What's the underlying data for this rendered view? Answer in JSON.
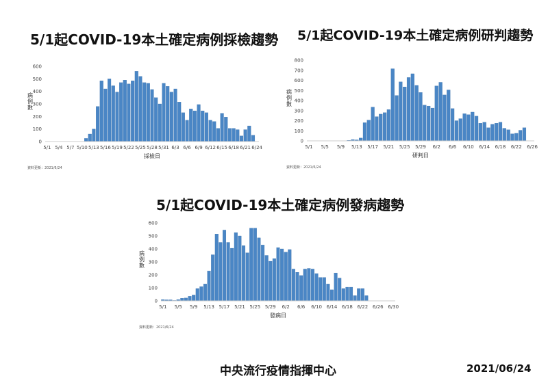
{
  "titles": {
    "chart1": "5/1起COVID-19本土確定病例採檢趨勢",
    "chart2": "5/1起COVID-19本土確定病例研判趨勢",
    "chart3": "5/1起COVID-19本土確定病例發病趨勢"
  },
  "footer": {
    "organization": "中央流行疫情指揮中心",
    "date": "2021/06/24"
  },
  "colors": {
    "bar": "#4a86c5",
    "bar_edge": "#3a70aa",
    "axis": "#cccccc"
  },
  "chart_data": [
    {
      "type": "bar",
      "title": "5/1起COVID-19本土確定病例採檢趨勢",
      "xlabel": "採檢日",
      "ylabel": "病例數",
      "ylim": [
        0,
        600
      ],
      "yticks": [
        0,
        100,
        200,
        300,
        400,
        500,
        600
      ],
      "xtick_labels": [
        "5/1",
        "5/4",
        "5/7",
        "5/10",
        "5/13",
        "5/16",
        "5/19",
        "5/22",
        "5/25",
        "5/28",
        "5/31",
        "6/3",
        "6/6",
        "6/9",
        "6/12",
        "6/15",
        "6/18",
        "6/21",
        "6/24"
      ],
      "source_note": "資料更新：2021/6/24",
      "categories": [
        "5/1",
        "5/2",
        "5/3",
        "5/4",
        "5/5",
        "5/6",
        "5/7",
        "5/8",
        "5/9",
        "5/10",
        "5/11",
        "5/12",
        "5/13",
        "5/14",
        "5/15",
        "5/16",
        "5/17",
        "5/18",
        "5/19",
        "5/20",
        "5/21",
        "5/22",
        "5/23",
        "5/24",
        "5/25",
        "5/26",
        "5/27",
        "5/28",
        "5/29",
        "5/30",
        "5/31",
        "6/1",
        "6/2",
        "6/3",
        "6/4",
        "6/5",
        "6/6",
        "6/7",
        "6/8",
        "6/9",
        "6/10",
        "6/11",
        "6/12",
        "6/13",
        "6/14",
        "6/15",
        "6/16",
        "6/17",
        "6/18",
        "6/19",
        "6/20",
        "6/21",
        "6/22",
        "6/23"
      ],
      "values": [
        0,
        0,
        0,
        0,
        0,
        0,
        0,
        0,
        0,
        0,
        25,
        60,
        100,
        280,
        485,
        420,
        500,
        445,
        395,
        470,
        490,
        460,
        485,
        560,
        520,
        470,
        465,
        415,
        350,
        300,
        465,
        440,
        395,
        420,
        315,
        230,
        170,
        260,
        245,
        295,
        245,
        230,
        170,
        160,
        105,
        225,
        195,
        105,
        105,
        95,
        45,
        95,
        125,
        50
      ]
    },
    {
      "type": "bar",
      "title": "5/1起COVID-19本土確定病例研判趨勢",
      "xlabel": "研判日",
      "ylabel": "病例數",
      "ylim": [
        0,
        800
      ],
      "yticks": [
        0,
        100,
        200,
        300,
        400,
        500,
        600,
        700,
        800
      ],
      "xtick_labels": [
        "5/1",
        "5/5",
        "5/9",
        "5/13",
        "5/17",
        "5/21",
        "5/25",
        "5/29",
        "6/2",
        "6/6",
        "6/10",
        "6/14",
        "6/18",
        "6/22",
        "6/26"
      ],
      "source_note": "資料更新：2021/6/24",
      "categories": [
        "5/1",
        "5/2",
        "5/3",
        "5/4",
        "5/5",
        "5/6",
        "5/7",
        "5/8",
        "5/9",
        "5/10",
        "5/11",
        "5/12",
        "5/13",
        "5/14",
        "5/15",
        "5/16",
        "5/17",
        "5/18",
        "5/19",
        "5/20",
        "5/21",
        "5/22",
        "5/23",
        "5/24",
        "5/25",
        "5/26",
        "5/27",
        "5/28",
        "5/29",
        "5/30",
        "5/31",
        "6/1",
        "6/2",
        "6/3",
        "6/4",
        "6/5",
        "6/6",
        "6/7",
        "6/8",
        "6/9",
        "6/10",
        "6/11",
        "6/12",
        "6/13",
        "6/14",
        "6/15",
        "6/16",
        "6/17",
        "6/18",
        "6/19",
        "6/20",
        "6/21",
        "6/22",
        "6/23",
        "6/24"
      ],
      "values": [
        1,
        1,
        0,
        0,
        1,
        0,
        0,
        1,
        0,
        2,
        5,
        13,
        10,
        28,
        180,
        206,
        335,
        240,
        265,
        280,
        310,
        715,
        450,
        585,
        535,
        628,
        665,
        550,
        480,
        355,
        345,
        325,
        545,
        580,
        455,
        505,
        320,
        200,
        220,
        270,
        260,
        285,
        245,
        175,
        185,
        130,
        165,
        175,
        185,
        125,
        110,
        70,
        75,
        105,
        130
      ]
    },
    {
      "type": "bar",
      "title": "5/1起COVID-19本土確定病例發病趨勢",
      "xlabel": "發病日",
      "ylabel": "病例數",
      "ylim": [
        0,
        600
      ],
      "yticks": [
        0,
        100,
        200,
        300,
        400,
        500,
        600
      ],
      "xtick_labels": [
        "5/1",
        "5/5",
        "5/9",
        "5/13",
        "5/17",
        "5/21",
        "5/25",
        "5/29",
        "6/2",
        "6/6",
        "6/10",
        "6/14",
        "6/18",
        "6/22",
        "6/26",
        "6/30"
      ],
      "source_note": "資料更新：2021/6/24",
      "categories": [
        "5/1",
        "5/2",
        "5/3",
        "5/4",
        "5/5",
        "5/6",
        "5/7",
        "5/8",
        "5/9",
        "5/10",
        "5/11",
        "5/12",
        "5/13",
        "5/14",
        "5/15",
        "5/16",
        "5/17",
        "5/18",
        "5/19",
        "5/20",
        "5/21",
        "5/22",
        "5/23",
        "5/24",
        "5/25",
        "5/26",
        "5/27",
        "5/28",
        "5/29",
        "5/30",
        "5/31",
        "6/1",
        "6/2",
        "6/3",
        "6/4",
        "6/5",
        "6/6",
        "6/7",
        "6/8",
        "6/9",
        "6/10",
        "6/11",
        "6/12",
        "6/13",
        "6/14",
        "6/15",
        "6/16",
        "6/17",
        "6/18",
        "6/19",
        "6/20",
        "6/21",
        "6/22",
        "6/23",
        "6/24",
        "6/25",
        "6/26",
        "6/27",
        "6/28",
        "6/29",
        "6/30"
      ],
      "values": [
        10,
        8,
        8,
        3,
        10,
        20,
        22,
        35,
        45,
        95,
        110,
        130,
        230,
        355,
        515,
        450,
        545,
        450,
        405,
        525,
        500,
        425,
        370,
        560,
        560,
        485,
        430,
        350,
        305,
        325,
        410,
        400,
        375,
        395,
        245,
        220,
        195,
        245,
        250,
        245,
        210,
        180,
        180,
        130,
        85,
        215,
        175,
        95,
        105,
        105,
        40,
        95,
        95,
        40,
        0,
        0,
        0,
        0,
        0,
        0,
        0
      ]
    }
  ]
}
